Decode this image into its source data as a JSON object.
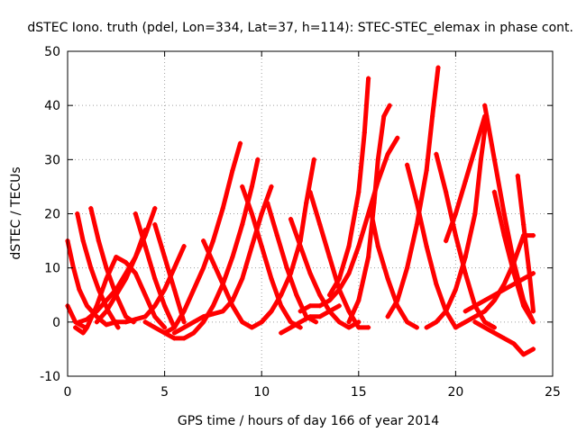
{
  "chart_data": {
    "type": "scatter",
    "title": "dSTEC Iono. truth (pdel, Lon=334, Lat=37, h=114): STEC-STEC_elemax in phase cont.",
    "xlabel": "GPS time / hours of day 166 of year 2014",
    "ylabel": "dSTEC  / TECUs",
    "xlim": [
      0,
      25
    ],
    "ylim": [
      -10,
      50
    ],
    "x_ticks": [
      0,
      5,
      10,
      15,
      20,
      25
    ],
    "y_ticks": [
      -10,
      0,
      10,
      20,
      30,
      40,
      50
    ],
    "grid": true,
    "grid_style": "dotted",
    "marker": "+",
    "color": "#ff0000",
    "series": [
      {
        "x": [
          0.0,
          0.3,
          0.6,
          1.0,
          1.5,
          2.0,
          2.5
        ],
        "y": [
          15,
          10,
          6,
          3,
          1,
          -0.5,
          0
        ]
      },
      {
        "x": [
          0.0,
          0.4,
          0.9
        ],
        "y": [
          3,
          0,
          -1
        ]
      },
      {
        "x": [
          0.5,
          0.8,
          1.2,
          1.6,
          2.1,
          2.6
        ],
        "y": [
          20,
          15,
          10,
          6,
          2,
          -1
        ]
      },
      {
        "x": [
          1.2,
          1.6,
          2.0,
          2.5,
          3.0,
          3.4
        ],
        "y": [
          21,
          15,
          10,
          5,
          1,
          0
        ]
      },
      {
        "x": [
          0.4,
          0.8,
          1.0,
          1.5,
          2.0,
          2.5
        ],
        "y": [
          -1,
          -2,
          -1,
          3,
          8,
          12
        ]
      },
      {
        "x": [
          0.6,
          1.0,
          1.5,
          2.0,
          2.5,
          3.0,
          3.5,
          4.0,
          4.5
        ],
        "y": [
          0,
          0.5,
          2,
          4,
          6,
          9,
          12,
          16,
          21
        ]
      },
      {
        "x": [
          1.5,
          2.0,
          2.5,
          3.0,
          3.5,
          4.0
        ],
        "y": [
          0,
          2,
          5,
          8,
          12,
          17
        ]
      },
      {
        "x": [
          2.5,
          3.0,
          3.5,
          4.0,
          4.5,
          5.0
        ],
        "y": [
          12,
          11,
          9,
          5,
          1,
          -1
        ]
      },
      {
        "x": [
          3.5,
          4.0,
          4.5,
          5.0,
          5.5
        ],
        "y": [
          20,
          14,
          8,
          3,
          -1
        ]
      },
      {
        "x": [
          4.5,
          5.0,
          5.5,
          6.0
        ],
        "y": [
          18,
          12,
          6,
          0
        ]
      },
      {
        "x": [
          2.5,
          3.0,
          3.5,
          4.0,
          4.5,
          5.0,
          5.5,
          6.0
        ],
        "y": [
          0,
          0,
          0.5,
          1,
          3,
          6,
          10,
          14
        ]
      },
      {
        "x": [
          4.0,
          4.5,
          5.0,
          5.5,
          6.0,
          6.5,
          7.0,
          7.5,
          8.0,
          8.5,
          8.9
        ],
        "y": [
          0,
          -1,
          -2,
          -1,
          2,
          6,
          10,
          15,
          21,
          28,
          33
        ]
      },
      {
        "x": [
          5.0,
          5.5,
          6.0,
          6.5,
          7.0,
          7.5,
          8.0,
          8.5,
          9.0,
          9.5,
          9.8
        ],
        "y": [
          -2,
          -3,
          -3,
          -2,
          0,
          3,
          7,
          12,
          18,
          25,
          30
        ]
      },
      {
        "x": [
          5.5,
          6.0,
          6.5,
          7.0,
          7.5,
          8.0,
          8.5,
          9.0,
          9.5,
          10.0,
          10.5
        ],
        "y": [
          -2,
          -1,
          0,
          1,
          1.5,
          2,
          4,
          8,
          14,
          20,
          25
        ]
      },
      {
        "x": [
          7.0,
          7.5,
          8.0,
          8.5,
          9.0,
          9.5,
          10.0,
          10.5
        ],
        "y": [
          15,
          11,
          7,
          3,
          0,
          -1,
          0,
          2
        ]
      },
      {
        "x": [
          9.0,
          9.5,
          10.0,
          10.5,
          11.0,
          11.5,
          12.0
        ],
        "y": [
          25,
          20,
          14,
          8,
          3,
          0,
          -1
        ]
      },
      {
        "x": [
          10.3,
          10.8,
          11.3,
          11.8,
          12.3,
          12.8
        ],
        "y": [
          22,
          16,
          10,
          5,
          1,
          0
        ]
      },
      {
        "x": [
          10.0,
          10.5,
          11.0,
          11.5,
          12.0,
          12.3,
          12.7
        ],
        "y": [
          0,
          2,
          5,
          9,
          15,
          22,
          30
        ]
      },
      {
        "x": [
          11.0,
          11.5,
          12.0,
          12.5,
          13.0,
          13.5,
          14.0
        ],
        "y": [
          -2,
          -1,
          0,
          1,
          1,
          2,
          3
        ]
      },
      {
        "x": [
          11.5,
          12.0,
          12.5,
          13.0,
          13.5,
          14.0,
          14.5,
          15.0
        ],
        "y": [
          19,
          14,
          9,
          5,
          2,
          0,
          -1,
          0
        ]
      },
      {
        "x": [
          12.5,
          13.0,
          13.5,
          14.0,
          14.5,
          15.0,
          15.5
        ],
        "y": [
          24,
          18,
          12,
          6,
          2,
          -1,
          -1
        ]
      },
      {
        "x": [
          12.0,
          12.5,
          13.0,
          13.5,
          14.0,
          14.5,
          15.0,
          15.5,
          16.0,
          16.5,
          17.0
        ],
        "y": [
          2,
          3,
          3,
          4,
          6,
          9,
          14,
          20,
          26,
          31,
          34
        ]
      },
      {
        "x": [
          13.5,
          14.0,
          14.5,
          15.0,
          15.3,
          15.5
        ],
        "y": [
          5,
          8,
          14,
          24,
          35,
          45
        ]
      },
      {
        "x": [
          14.5,
          15.0,
          15.5,
          15.8,
          16.0,
          16.3,
          16.6
        ],
        "y": [
          0,
          4,
          12,
          22,
          30,
          38,
          40
        ]
      },
      {
        "x": [
          15.6,
          16.0,
          16.5,
          17.0,
          17.5,
          18.0
        ],
        "y": [
          21,
          14,
          8,
          3,
          0,
          -1
        ]
      },
      {
        "x": [
          16.5,
          17.0,
          17.5,
          18.0,
          18.5,
          18.8,
          19.1
        ],
        "y": [
          1,
          4,
          10,
          18,
          28,
          38,
          47
        ]
      },
      {
        "x": [
          17.5,
          18.0,
          18.5,
          19.0,
          19.5,
          20.0
        ],
        "y": [
          29,
          22,
          14,
          7,
          2,
          -1
        ]
      },
      {
        "x": [
          19.0,
          19.5,
          20.0,
          20.5,
          21.0,
          21.5,
          22.0
        ],
        "y": [
          31,
          24,
          16,
          9,
          3,
          0,
          -1
        ]
      },
      {
        "x": [
          18.5,
          19.0,
          19.5,
          20.0,
          20.5,
          21.0,
          21.3,
          21.6
        ],
        "y": [
          -1,
          0,
          2,
          6,
          12,
          20,
          30,
          38
        ]
      },
      {
        "x": [
          19.5,
          20.0,
          20.5,
          21.0,
          21.5
        ],
        "y": [
          15,
          20,
          26,
          32,
          38
        ]
      },
      {
        "x": [
          21.5,
          22.0,
          22.5,
          23.0,
          23.5,
          24.0
        ],
        "y": [
          40,
          30,
          20,
          11,
          4,
          0
        ]
      },
      {
        "x": [
          22.0,
          22.5,
          23.0,
          23.5,
          24.0
        ],
        "y": [
          24,
          16,
          9,
          3,
          0
        ]
      },
      {
        "x": [
          20.0,
          20.5,
          21.0,
          21.5,
          22.0,
          22.5,
          23.0,
          23.5,
          24.0
        ],
        "y": [
          -1,
          0,
          1,
          2,
          4,
          7,
          11,
          16,
          16
        ]
      },
      {
        "x": [
          20.5,
          21.0,
          21.5,
          22.0,
          22.5,
          23.0,
          23.5,
          24.0
        ],
        "y": [
          2,
          3,
          4,
          5,
          6,
          7,
          8,
          9
        ]
      },
      {
        "x": [
          23.2,
          23.5,
          23.8,
          24.0
        ],
        "y": [
          27,
          18,
          9,
          2
        ]
      },
      {
        "x": [
          21.0,
          21.5,
          22.0,
          22.5,
          23.0,
          23.5,
          24.0
        ],
        "y": [
          0,
          -1,
          -2,
          -3,
          -4,
          -6,
          -5
        ]
      }
    ]
  }
}
